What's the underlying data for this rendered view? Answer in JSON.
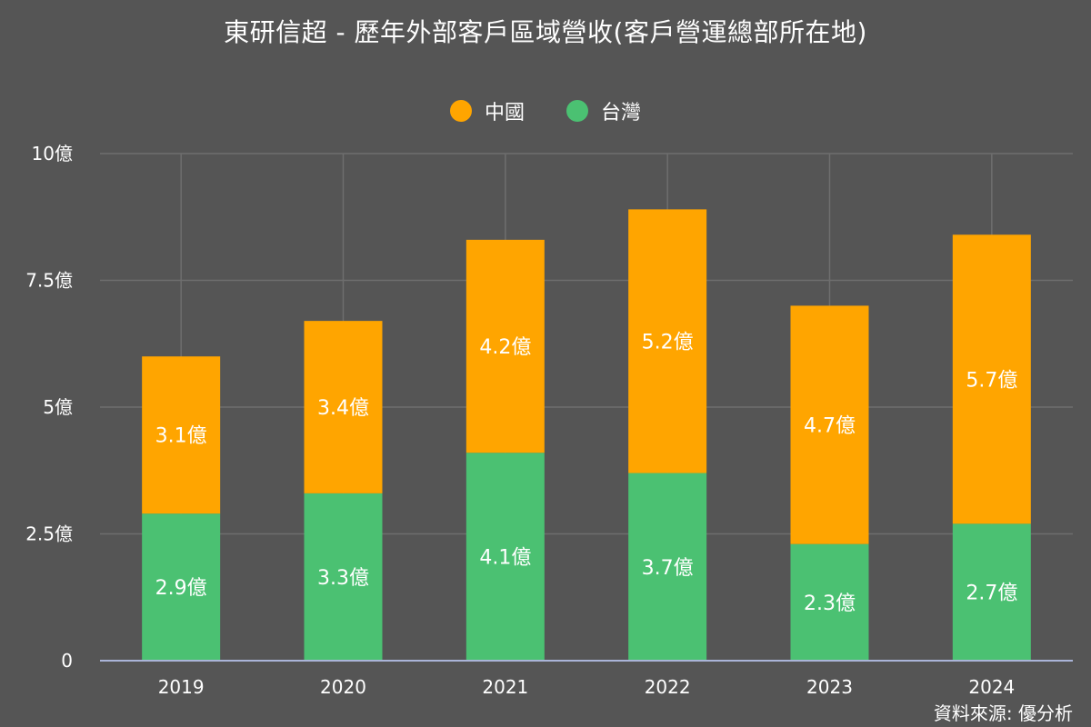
{
  "title": "東研信超 - 歷年外部客戶區域營收(客戶營運總部所在地)",
  "source": "資料來源: 優分析",
  "colors": {
    "background": "#555555",
    "grid": "#6e6e6e",
    "axis": "#aab4d8",
    "china": "#FFA500",
    "taiwan": "#4BC172",
    "text": "#ffffff"
  },
  "legend": [
    {
      "name": "中國",
      "color": "#FFA500"
    },
    {
      "name": "台灣",
      "color": "#4BC172"
    }
  ],
  "chart_data": {
    "type": "bar",
    "stacked": true,
    "title": "東研信超 - 歷年外部客戶區域營收(客戶營運總部所在地)",
    "categories": [
      "2019",
      "2020",
      "2021",
      "2022",
      "2023",
      "2024"
    ],
    "series": [
      {
        "name": "台灣",
        "values": [
          2.9,
          3.3,
          4.1,
          3.7,
          2.3,
          2.7
        ],
        "labels": [
          "2.9億",
          "3.3億",
          "4.1億",
          "3.7億",
          "2.3億",
          "2.7億"
        ]
      },
      {
        "name": "中國",
        "values": [
          3.1,
          3.4,
          4.2,
          5.2,
          4.7,
          5.7
        ],
        "labels": [
          "3.1億",
          "3.4億",
          "4.2億",
          "5.2億",
          "4.7億",
          "5.7億"
        ]
      }
    ],
    "ylim": [
      0,
      10
    ],
    "yticks": [
      0,
      2.5,
      5,
      7.5,
      10
    ],
    "ytick_labels": [
      "0",
      "2.5億",
      "5億",
      "7.5億",
      "10億"
    ],
    "xlabel": "",
    "ylabel": "",
    "grid": true,
    "legend_position": "top"
  }
}
